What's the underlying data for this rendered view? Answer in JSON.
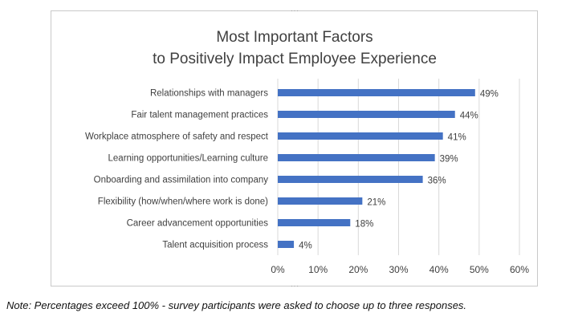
{
  "chart_data": {
    "type": "bar",
    "orientation": "horizontal",
    "title_lines": [
      "Most Important Factors",
      "to Positively Impact Employee Experience"
    ],
    "categories": [
      "Relationships with managers",
      "Fair talent management practices",
      "Workplace atmosphere of safety and respect",
      "Learning opportunities/Learning culture",
      "Onboarding and assimilation into company",
      "Flexibility (how/when/where work is done)",
      "Career advancement opportunities",
      "Talent acquisition process"
    ],
    "values": [
      49,
      44,
      41,
      39,
      36,
      21,
      18,
      4
    ],
    "value_labels": [
      "49%",
      "44%",
      "41%",
      "39%",
      "36%",
      "21%",
      "18%",
      "4%"
    ],
    "xlim": [
      0,
      60
    ],
    "x_ticks": [
      0,
      10,
      20,
      30,
      40,
      50,
      60
    ],
    "x_tick_labels": [
      "0%",
      "10%",
      "20%",
      "30%",
      "40%",
      "50%",
      "60%"
    ],
    "grid": "vertical",
    "bar_color": "#4472c4"
  },
  "footnote": "Note: Percentages exceed 100% - survey participants were asked to choose up to three responses."
}
